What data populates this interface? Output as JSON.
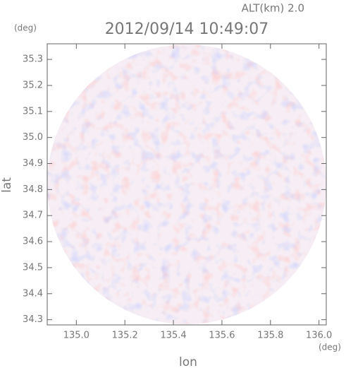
{
  "chart_data": {
    "type": "image",
    "title": "2012/09/14 10:49:07",
    "subtitle": "ALT(km) 2.0",
    "x_label": "lon",
    "y_label": "lat",
    "x_unit": "(deg)",
    "y_unit": "(deg)",
    "xlim": [
      134.88,
      136.03
    ],
    "ylim": [
      34.28,
      35.36
    ],
    "xticks": [
      {
        "value": 135,
        "label": "135.0"
      },
      135.2,
      135.4,
      135.6,
      135.8,
      {
        "value": 136,
        "label": "136.0"
      }
    ],
    "yticks": [
      34.3,
      34.4,
      34.5,
      34.6,
      34.7,
      34.8,
      34.9,
      {
        "value": 35,
        "label": "35.0"
      },
      35.1,
      35.2,
      35.3
    ]
  }
}
